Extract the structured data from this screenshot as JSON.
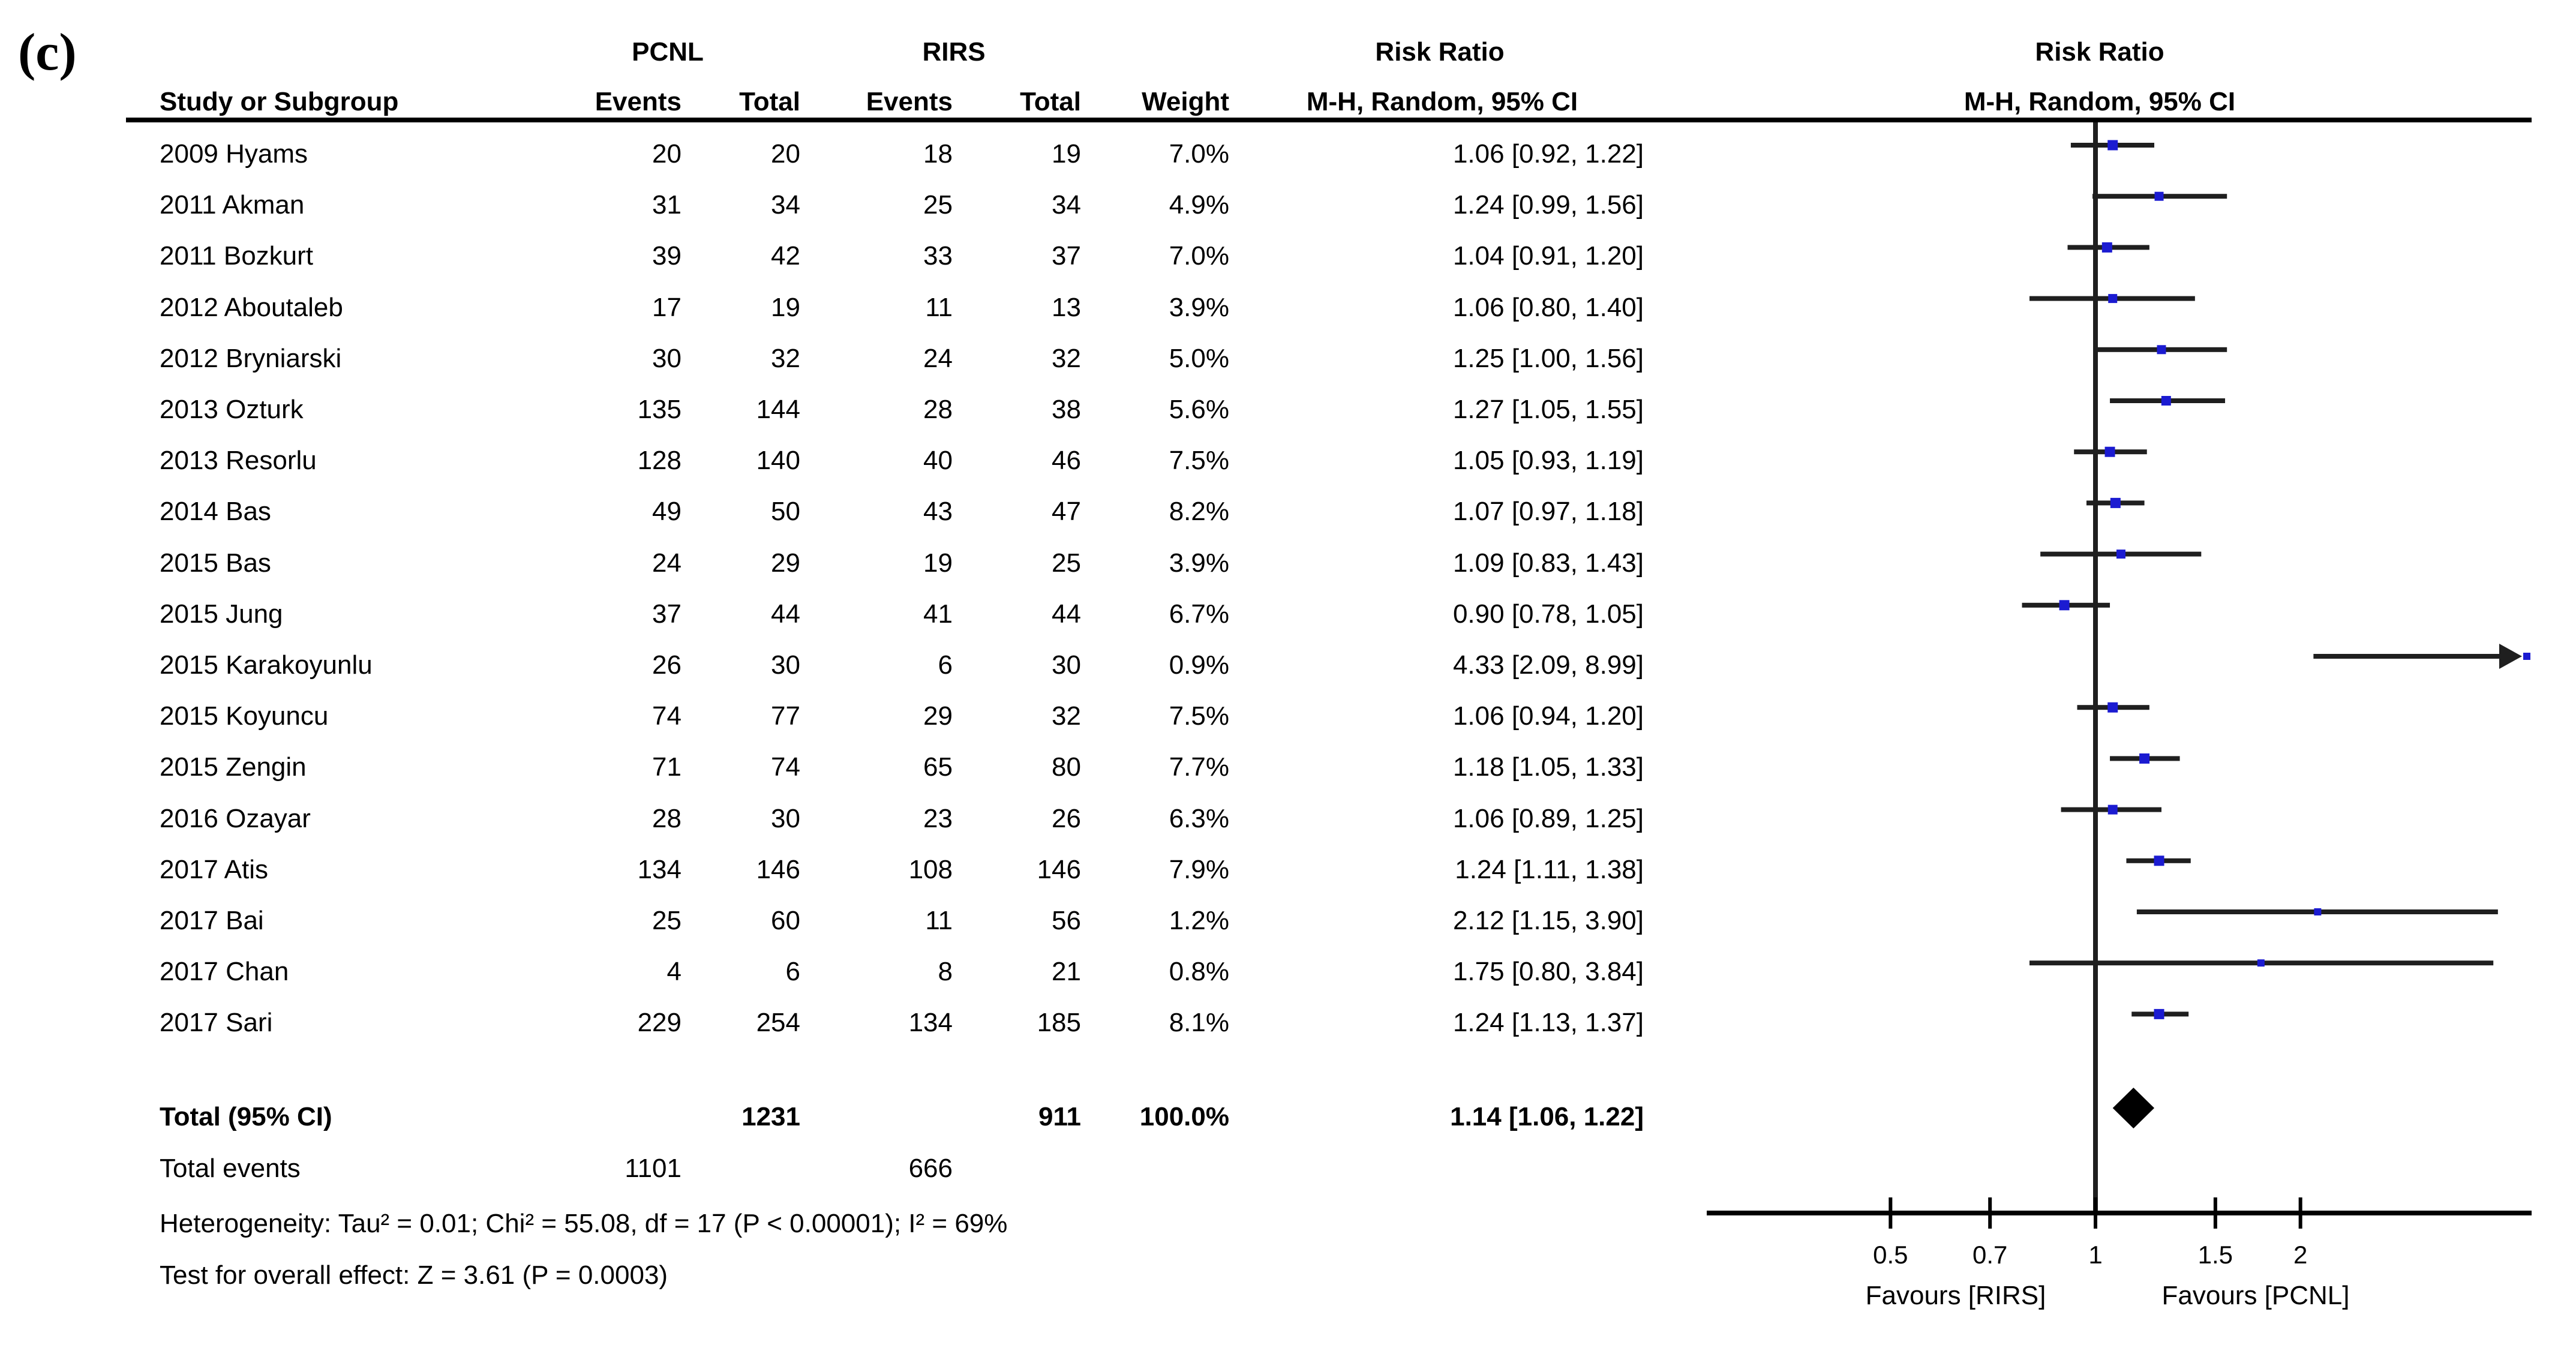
{
  "panel_label": "(c)",
  "colors": {
    "marker_blue": "#1b1bd1",
    "line_black": "#1f1f1f",
    "rule_black": "#000000"
  },
  "chart_data": {
    "type": "forest",
    "closest_standard_type": "scatter",
    "effect": {
      "title": "Risk Ratio",
      "method": "M-H, Random, 95% CI"
    },
    "groups": [
      "PCNL",
      "RIRS"
    ],
    "columns": {
      "study": "Study or Subgroup",
      "events": "Events",
      "total": "Total",
      "weight": "Weight"
    },
    "studies": [
      {
        "name": "2009 Hyams",
        "events1": 20,
        "total1": 20,
        "events2": 18,
        "total2": 19,
        "weight": "7.0%",
        "weight_pct": 7.0,
        "rr": 1.06,
        "ci_low": 0.92,
        "ci_high": 1.22,
        "ci_label": "1.06 [0.92, 1.22]"
      },
      {
        "name": "2011 Akman",
        "events1": 31,
        "total1": 34,
        "events2": 25,
        "total2": 34,
        "weight": "4.9%",
        "weight_pct": 4.9,
        "rr": 1.24,
        "ci_low": 0.99,
        "ci_high": 1.56,
        "ci_label": "1.24 [0.99, 1.56]"
      },
      {
        "name": "2011 Bozkurt",
        "events1": 39,
        "total1": 42,
        "events2": 33,
        "total2": 37,
        "weight": "7.0%",
        "weight_pct": 7.0,
        "rr": 1.04,
        "ci_low": 0.91,
        "ci_high": 1.2,
        "ci_label": "1.04 [0.91, 1.20]"
      },
      {
        "name": "2012 Aboutaleb",
        "events1": 17,
        "total1": 19,
        "events2": 11,
        "total2": 13,
        "weight": "3.9%",
        "weight_pct": 3.9,
        "rr": 1.06,
        "ci_low": 0.8,
        "ci_high": 1.4,
        "ci_label": "1.06 [0.80, 1.40]"
      },
      {
        "name": "2012 Bryniarski",
        "events1": 30,
        "total1": 32,
        "events2": 24,
        "total2": 32,
        "weight": "5.0%",
        "weight_pct": 5.0,
        "rr": 1.25,
        "ci_low": 1.0,
        "ci_high": 1.56,
        "ci_label": "1.25 [1.00, 1.56]"
      },
      {
        "name": "2013 Ozturk",
        "events1": 135,
        "total1": 144,
        "events2": 28,
        "total2": 38,
        "weight": "5.6%",
        "weight_pct": 5.6,
        "rr": 1.27,
        "ci_low": 1.05,
        "ci_high": 1.55,
        "ci_label": "1.27 [1.05, 1.55]"
      },
      {
        "name": "2013 Resorlu",
        "events1": 128,
        "total1": 140,
        "events2": 40,
        "total2": 46,
        "weight": "7.5%",
        "weight_pct": 7.5,
        "rr": 1.05,
        "ci_low": 0.93,
        "ci_high": 1.19,
        "ci_label": "1.05 [0.93, 1.19]"
      },
      {
        "name": "2014 Bas",
        "events1": 49,
        "total1": 50,
        "events2": 43,
        "total2": 47,
        "weight": "8.2%",
        "weight_pct": 8.2,
        "rr": 1.07,
        "ci_low": 0.97,
        "ci_high": 1.18,
        "ci_label": "1.07 [0.97, 1.18]"
      },
      {
        "name": "2015 Bas",
        "events1": 24,
        "total1": 29,
        "events2": 19,
        "total2": 25,
        "weight": "3.9%",
        "weight_pct": 3.9,
        "rr": 1.09,
        "ci_low": 0.83,
        "ci_high": 1.43,
        "ci_label": "1.09 [0.83, 1.43]"
      },
      {
        "name": "2015 Jung",
        "events1": 37,
        "total1": 44,
        "events2": 41,
        "total2": 44,
        "weight": "6.7%",
        "weight_pct": 6.7,
        "rr": 0.9,
        "ci_low": 0.78,
        "ci_high": 1.05,
        "ci_label": "0.90 [0.78, 1.05]"
      },
      {
        "name": "2015 Karakoyunlu",
        "events1": 26,
        "total1": 30,
        "events2": 6,
        "total2": 30,
        "weight": "0.9%",
        "weight_pct": 0.9,
        "rr": 4.33,
        "ci_low": 2.09,
        "ci_high": 8.99,
        "ci_label": "4.33 [2.09, 8.99]"
      },
      {
        "name": "2015 Koyuncu",
        "events1": 74,
        "total1": 77,
        "events2": 29,
        "total2": 32,
        "weight": "7.5%",
        "weight_pct": 7.5,
        "rr": 1.06,
        "ci_low": 0.94,
        "ci_high": 1.2,
        "ci_label": "1.06 [0.94, 1.20]"
      },
      {
        "name": "2015 Zengin",
        "events1": 71,
        "total1": 74,
        "events2": 65,
        "total2": 80,
        "weight": "7.7%",
        "weight_pct": 7.7,
        "rr": 1.18,
        "ci_low": 1.05,
        "ci_high": 1.33,
        "ci_label": "1.18 [1.05, 1.33]"
      },
      {
        "name": "2016 Ozayar",
        "events1": 28,
        "total1": 30,
        "events2": 23,
        "total2": 26,
        "weight": "6.3%",
        "weight_pct": 6.3,
        "rr": 1.06,
        "ci_low": 0.89,
        "ci_high": 1.25,
        "ci_label": "1.06 [0.89, 1.25]"
      },
      {
        "name": "2017 Atis",
        "events1": 134,
        "total1": 146,
        "events2": 108,
        "total2": 146,
        "weight": "7.9%",
        "weight_pct": 7.9,
        "rr": 1.24,
        "ci_low": 1.11,
        "ci_high": 1.38,
        "ci_label": "1.24 [1.11, 1.38]"
      },
      {
        "name": "2017 Bai",
        "events1": 25,
        "total1": 60,
        "events2": 11,
        "total2": 56,
        "weight": "1.2%",
        "weight_pct": 1.2,
        "rr": 2.12,
        "ci_low": 1.15,
        "ci_high": 3.9,
        "ci_label": "2.12 [1.15, 3.90]"
      },
      {
        "name": "2017 Chan",
        "events1": 4,
        "total1": 6,
        "events2": 8,
        "total2": 21,
        "weight": "0.8%",
        "weight_pct": 0.8,
        "rr": 1.75,
        "ci_low": 0.8,
        "ci_high": 3.84,
        "ci_label": "1.75 [0.80, 3.84]"
      },
      {
        "name": "2017 Sari",
        "events1": 229,
        "total1": 254,
        "events2": 134,
        "total2": 185,
        "weight": "8.1%",
        "weight_pct": 8.1,
        "rr": 1.24,
        "ci_low": 1.13,
        "ci_high": 1.37,
        "ci_label": "1.24 [1.13, 1.37]"
      }
    ],
    "total": {
      "label": "Total (95% CI)",
      "total1": 1231,
      "total2": 911,
      "weight": "100.0%",
      "weight_pct": 100.0,
      "rr": 1.14,
      "ci_low": 1.06,
      "ci_high": 1.22,
      "ci_label": "1.14 [1.06, 1.22]"
    },
    "total_events": {
      "label": "Total events",
      "events1": 1101,
      "events2": 666
    },
    "heterogeneity": "Heterogeneity: Tau² = 0.01; Chi² = 55.08, df = 17 (P < 0.00001); I² = 69%",
    "overall_effect": "Test for overall effect: Z = 3.61 (P = 0.0003)",
    "axis": {
      "scale": "log10",
      "tick_values": [
        0.5,
        0.7,
        1,
        1.5,
        2
      ],
      "tick_labels": [
        "0.5",
        "0.7",
        "1",
        "1.5",
        "2"
      ],
      "no_effect_value": 1,
      "shown_range_approx": [
        0.27,
        3.95
      ],
      "favours_left": "Favours [RIRS]",
      "favours_right": "Favours [PCNL]"
    }
  }
}
